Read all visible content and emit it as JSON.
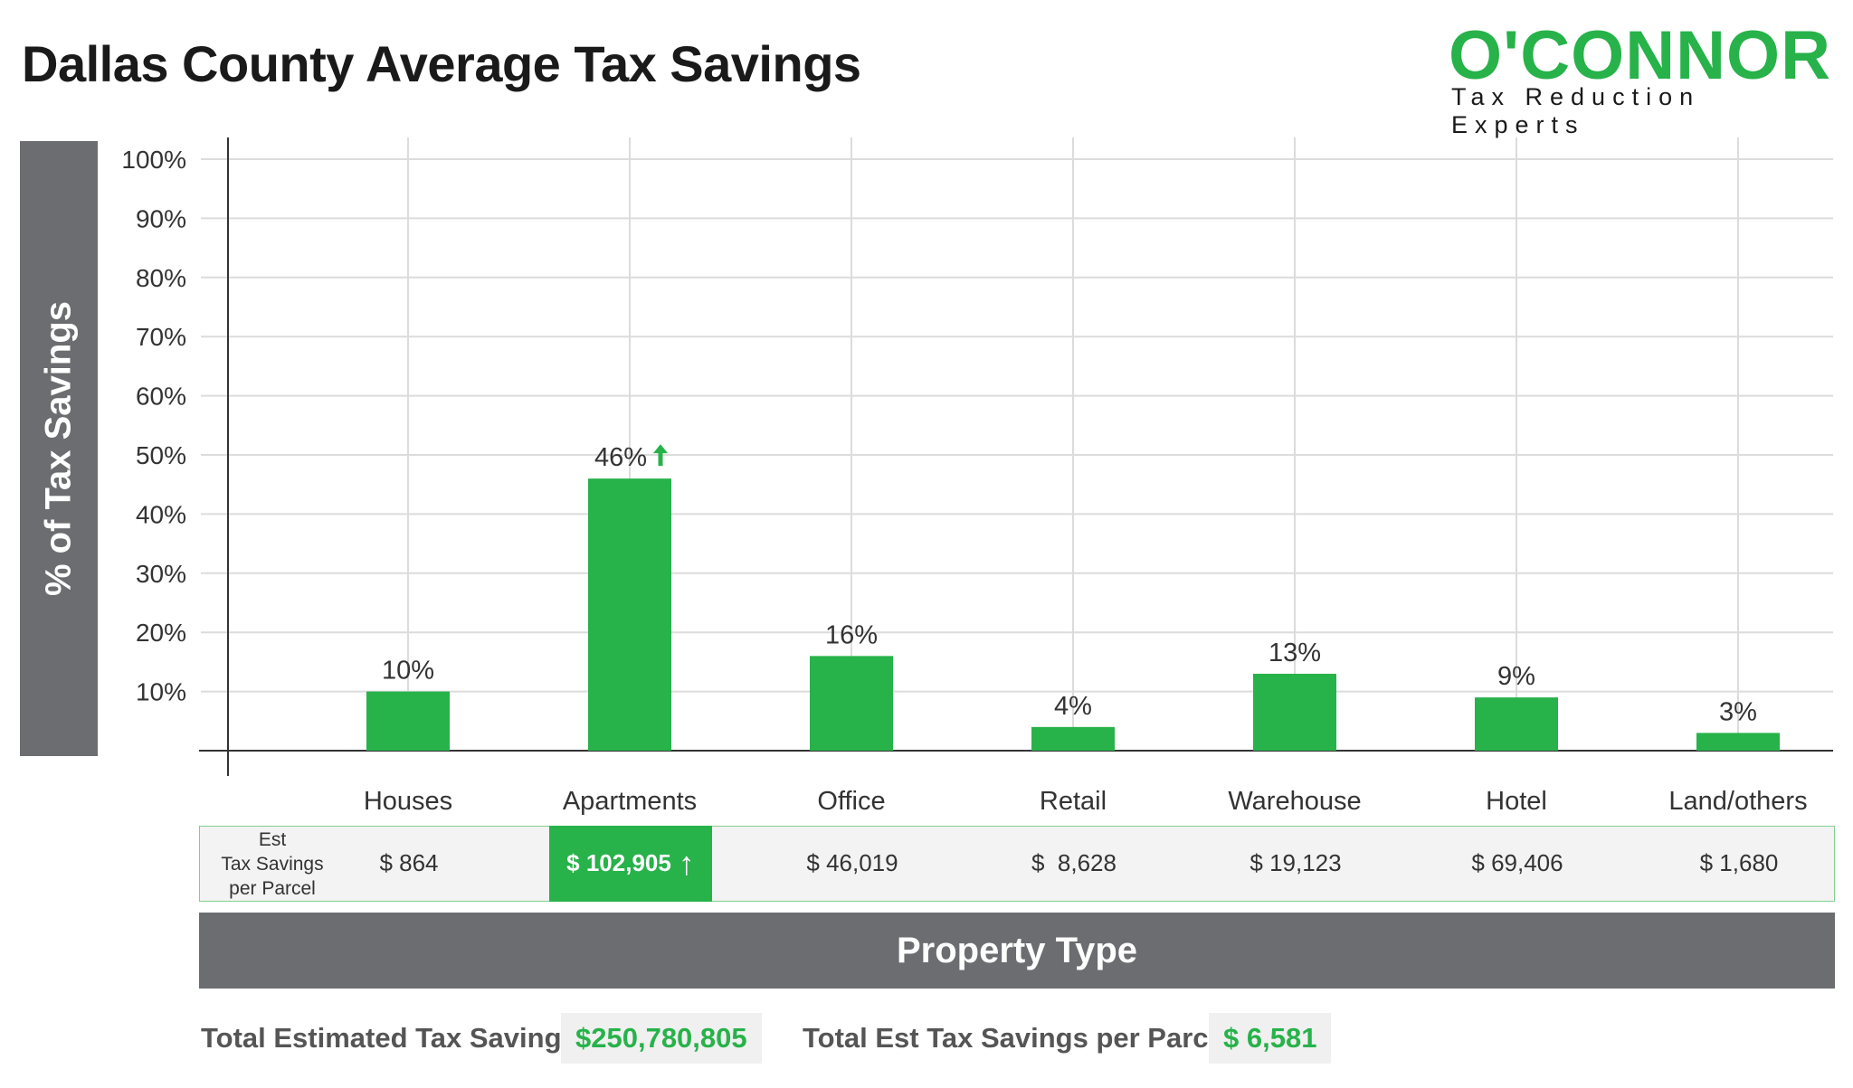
{
  "page": {
    "title": "Dallas County Average Tax Savings",
    "brand": {
      "name": "O'CONNOR",
      "tagline": "Tax Reduction Experts"
    },
    "accent_color": "#27b24a",
    "gray_color": "#6c6d70"
  },
  "chart_data": {
    "type": "bar",
    "title": "Dallas County Average Tax Savings",
    "ylabel": "% of Tax Savings",
    "xlabel": "Property Type",
    "categories": [
      "Houses",
      "Apartments",
      "Office",
      "Retail",
      "Warehouse",
      "Hotel",
      "Land/others"
    ],
    "values": [
      10,
      46,
      16,
      4,
      13,
      9,
      3
    ],
    "value_labels": [
      "10%",
      "46%",
      "16%",
      "4%",
      "13%",
      "9%",
      "3%"
    ],
    "highlight_index": 1,
    "highlight_marker": "up-arrow-icon",
    "ylim": [
      0,
      100
    ],
    "yticks": [
      10,
      20,
      30,
      40,
      50,
      60,
      70,
      80,
      90,
      100
    ],
    "ytick_labels": [
      "10%",
      "20%",
      "30%",
      "40%",
      "50%",
      "60%",
      "70%",
      "80%",
      "90%",
      "100%"
    ],
    "grid": true,
    "bar_color": "#27b24a"
  },
  "savings_row": {
    "label_lines": [
      "Est",
      "Tax Savings",
      "per Parcel"
    ],
    "values": [
      "$ 864",
      "$ 102,905",
      "$ 46,019",
      "$  8,628",
      "$ 19,123",
      "$ 69,406",
      "$ 1,680"
    ],
    "highlight_index": 1
  },
  "totals": {
    "total_label": "Total Estimated Tax Savings",
    "total_value": "$250,780,805",
    "per_parcel_label": "Total Est Tax Savings per Parcel",
    "per_parcel_value": "$ 6,581"
  }
}
